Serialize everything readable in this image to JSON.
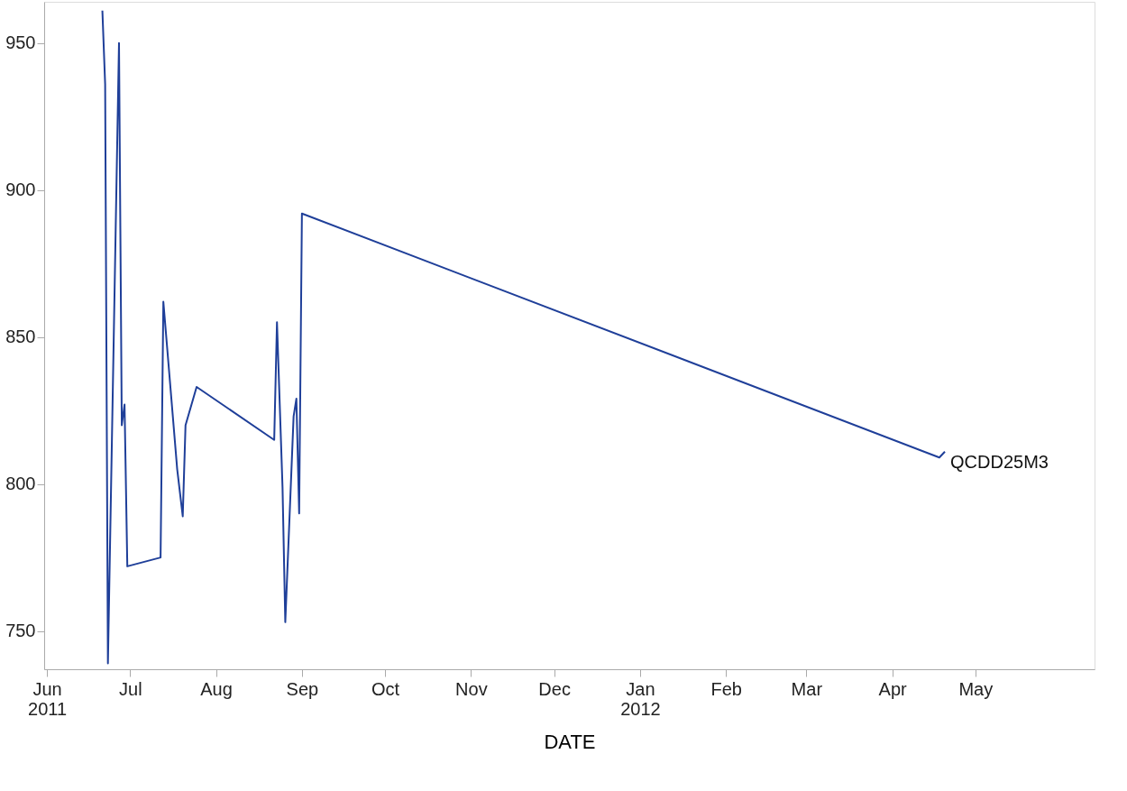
{
  "chart_data": {
    "type": "line",
    "xlabel": "DATE",
    "x": [
      "2011-06-21",
      "2011-06-22",
      "2011-06-23",
      "2011-06-27",
      "2011-06-28",
      "2011-06-29",
      "2011-06-30",
      "2011-07-12",
      "2011-07-13",
      "2011-07-18",
      "2011-07-20",
      "2011-07-21",
      "2011-07-25",
      "2011-08-22",
      "2011-08-23",
      "2011-08-25",
      "2011-08-26",
      "2011-08-29",
      "2011-08-30",
      "2011-08-31",
      "2011-09-01",
      "2012-04-18",
      "2012-04-20"
    ],
    "series": [
      {
        "name": "QCDD25M3",
        "color": "#1f3f99",
        "values": [
          961,
          936,
          739,
          950,
          820,
          827,
          772,
          775,
          862,
          805,
          789,
          820,
          833,
          815,
          855,
          799,
          753,
          823,
          829,
          790,
          892,
          809,
          811
        ]
      }
    ],
    "xlim": [
      "2011-05-31",
      "2012-06-13"
    ],
    "xticks": [
      {
        "value": "2011-06-01",
        "label": "Jun\n2011"
      },
      {
        "value": "2011-07-01",
        "label": "Jul"
      },
      {
        "value": "2011-08-01",
        "label": "Aug"
      },
      {
        "value": "2011-09-01",
        "label": "Sep"
      },
      {
        "value": "2011-10-01",
        "label": "Oct"
      },
      {
        "value": "2011-11-01",
        "label": "Nov"
      },
      {
        "value": "2011-12-01",
        "label": "Dec"
      },
      {
        "value": "2012-01-01",
        "label": "Jan\n2012"
      },
      {
        "value": "2012-02-01",
        "label": "Feb"
      },
      {
        "value": "2012-03-01",
        "label": "Mar"
      },
      {
        "value": "2012-04-01",
        "label": "Apr"
      },
      {
        "value": "2012-05-01",
        "label": "May"
      }
    ],
    "ylim": [
      737,
      964
    ],
    "yticks": [
      750,
      800,
      850,
      900,
      950
    ],
    "grid": false,
    "legend": false,
    "marker": "none",
    "line_style": "solid"
  }
}
